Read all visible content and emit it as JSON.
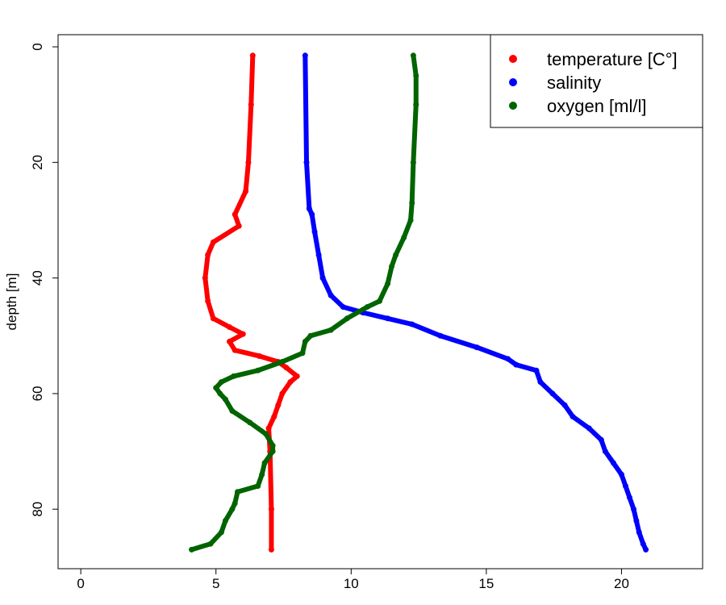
{
  "chart_data": {
    "type": "scatter",
    "y_label": "depth [m]",
    "xlim": [
      -0.84,
      23.0
    ],
    "ylim": [
      -2.1,
      90.3
    ],
    "y_inverted": true,
    "xticks": [
      0,
      5,
      10,
      15,
      20
    ],
    "yticks": [
      0,
      20,
      40,
      60,
      80
    ],
    "legend": "topright",
    "series": [
      {
        "name": "temperature [C°]",
        "color": "#ff0000",
        "y": [
          1.5,
          10,
          20,
          25,
          29,
          31,
          33.8,
          36,
          40,
          44,
          47,
          48.5,
          49.7,
          51,
          52.5,
          53.5,
          54.5,
          55.5,
          57,
          58,
          60,
          62,
          64,
          66,
          70,
          80,
          87
        ],
        "x": [
          6.36,
          6.3,
          6.2,
          6.1,
          5.7,
          5.85,
          4.9,
          4.7,
          4.6,
          4.7,
          4.9,
          5.5,
          6.0,
          5.5,
          5.7,
          6.6,
          7.3,
          7.6,
          8.0,
          7.75,
          7.45,
          7.3,
          7.15,
          6.95,
          7.0,
          7.05,
          7.05
        ]
      },
      {
        "name": "salinity",
        "color": "#0000ff",
        "y": [
          1.5,
          20,
          28,
          29,
          32,
          36,
          40,
          43,
          45,
          46,
          47,
          48,
          50,
          52,
          54,
          55,
          56,
          58,
          60,
          62,
          64,
          66,
          68,
          70,
          72,
          74,
          76,
          78,
          80,
          82,
          84,
          86,
          87
        ],
        "x": [
          8.3,
          8.35,
          8.45,
          8.55,
          8.65,
          8.8,
          8.95,
          9.25,
          9.7,
          10.45,
          11.35,
          12.25,
          13.3,
          14.65,
          15.8,
          16.1,
          16.85,
          17.0,
          17.45,
          17.9,
          18.2,
          18.8,
          19.25,
          19.4,
          19.7,
          20.0,
          20.15,
          20.3,
          20.45,
          20.55,
          20.65,
          20.8,
          20.9
        ]
      },
      {
        "name": "oxygen [ml/l]",
        "color": "#006400",
        "y": [
          1.5,
          5,
          10,
          20,
          27,
          30,
          33,
          36,
          38,
          41,
          44,
          45,
          47,
          49,
          50,
          51,
          53,
          54.5,
          56,
          57,
          58,
          59,
          60,
          61,
          63,
          65,
          67,
          69,
          70,
          72,
          74,
          76,
          77,
          79,
          80,
          82,
          84,
          86,
          87
        ],
        "x": [
          12.3,
          12.4,
          12.4,
          12.3,
          12.25,
          12.2,
          11.95,
          11.65,
          11.5,
          11.35,
          11.05,
          10.6,
          9.85,
          9.25,
          8.5,
          8.3,
          8.2,
          7.45,
          6.55,
          5.65,
          5.2,
          5.0,
          5.15,
          5.35,
          5.6,
          6.25,
          6.85,
          7.1,
          7.1,
          6.8,
          6.7,
          6.55,
          5.8,
          5.7,
          5.6,
          5.35,
          5.2,
          4.8,
          4.1
        ]
      }
    ]
  }
}
